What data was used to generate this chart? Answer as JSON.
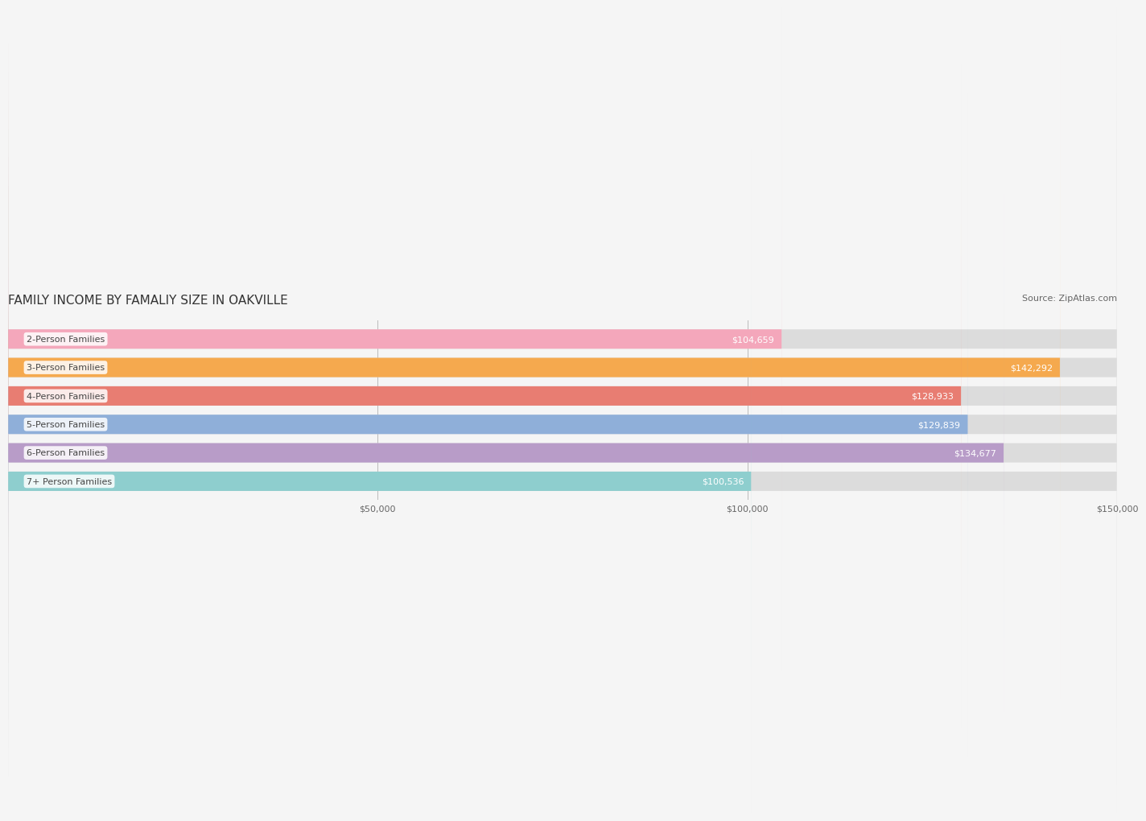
{
  "title": "FAMILY INCOME BY FAMALIY SIZE IN OAKVILLE",
  "source": "Source: ZipAtlas.com",
  "categories": [
    "2-Person Families",
    "3-Person Families",
    "4-Person Families",
    "5-Person Families",
    "6-Person Families",
    "7+ Person Families"
  ],
  "values": [
    104659,
    142292,
    128933,
    129839,
    134677,
    100536
  ],
  "labels": [
    "$104,659",
    "$142,292",
    "$128,933",
    "$129,839",
    "$134,677",
    "$100,536"
  ],
  "bar_colors": [
    "#f4a7bb",
    "#f5a94e",
    "#e87d72",
    "#8fafd9",
    "#b89cc8",
    "#8ecece"
  ],
  "bar_bg_color": "#e8e8e8",
  "background_color": "#f5f5f5",
  "xlim": [
    0,
    150000
  ],
  "xticks": [
    0,
    50000,
    100000,
    150000
  ],
  "xticklabels": [
    "",
    "$50,000",
    "$100,000",
    "$150,000"
  ],
  "title_fontsize": 11,
  "source_fontsize": 8,
  "label_fontsize": 8,
  "category_fontsize": 8
}
